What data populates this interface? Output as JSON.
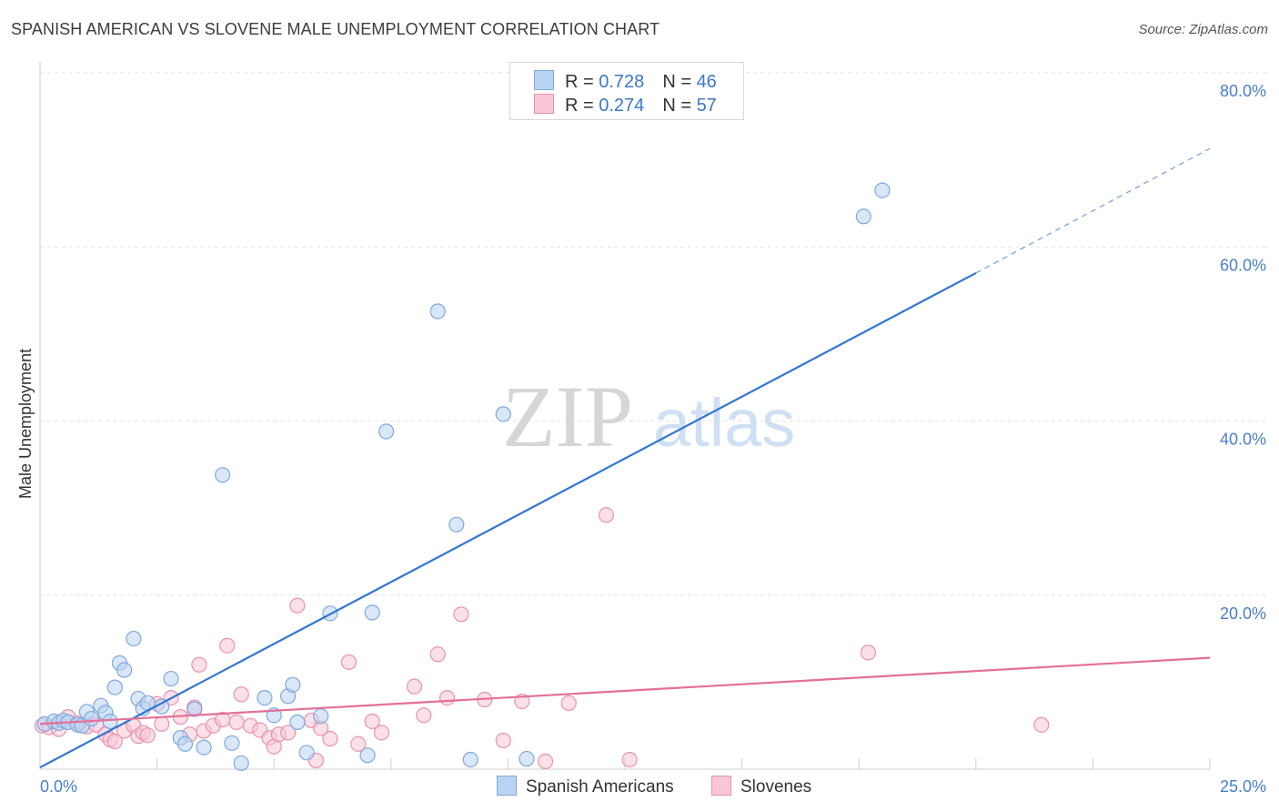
{
  "header": {
    "title": "SPANISH AMERICAN VS SLOVENE MALE UNEMPLOYMENT CORRELATION CHART",
    "source": "Source: ZipAtlas.com"
  },
  "legend": {
    "rows": [
      {
        "r_label": "R = ",
        "r_value": "0.728",
        "n_label": "N = ",
        "n_value": "46"
      },
      {
        "r_label": "R = ",
        "r_value": "0.274",
        "n_label": "N = ",
        "n_value": "57"
      }
    ]
  },
  "bottom_legend": {
    "series_a": "Spanish Americans",
    "series_b": "Slovenes"
  },
  "watermark": {
    "zip": "ZIP",
    "atlas": "atlas"
  },
  "colors": {
    "blue_fill": "#b9d3f3",
    "blue_stroke": "#7ea8e0",
    "blue_line": "#3276d2",
    "pink_fill": "#f8c6d6",
    "pink_stroke": "#e893ad",
    "pink_line": "#e46f99",
    "grid": "#e2e2e2",
    "tick_text": "#4a7fc8"
  },
  "chart_data": {
    "type": "scatter",
    "title": "SPANISH AMERICAN VS SLOVENE MALE UNEMPLOYMENT CORRELATION CHART",
    "xlabel": "",
    "ylabel": "Male Unemployment",
    "xlim": [
      0,
      25
    ],
    "ylim": [
      0,
      80
    ],
    "x_tick_labels": [
      "0.0%",
      "25.0%"
    ],
    "y_ticks": [
      20,
      40,
      60,
      80
    ],
    "y_tick_labels": [
      "20.0%",
      "40.0%",
      "60.0%",
      "80.0%"
    ],
    "grid": true,
    "legend_position": "top-center",
    "series": [
      {
        "name": "Spanish Americans",
        "r": 0.728,
        "n": 46,
        "trend": {
          "x0": 0,
          "y0": 0.2,
          "x1": 20,
          "y1": 57,
          "dash_to_x": 25,
          "dash_to_y": 71.3
        },
        "points": [
          [
            0.1,
            5.2
          ],
          [
            0.3,
            5.5
          ],
          [
            0.4,
            5.3
          ],
          [
            0.5,
            5.6
          ],
          [
            0.6,
            5.4
          ],
          [
            0.8,
            5.1
          ],
          [
            0.9,
            5.0
          ],
          [
            1.0,
            6.6
          ],
          [
            1.1,
            5.8
          ],
          [
            1.3,
            7.3
          ],
          [
            1.4,
            6.5
          ],
          [
            1.5,
            5.5
          ],
          [
            1.6,
            9.4
          ],
          [
            1.7,
            12.2
          ],
          [
            1.8,
            11.4
          ],
          [
            2.0,
            15.0
          ],
          [
            2.1,
            8.1
          ],
          [
            2.2,
            7.0
          ],
          [
            2.3,
            7.6
          ],
          [
            2.6,
            7.2
          ],
          [
            2.8,
            10.4
          ],
          [
            3.0,
            3.6
          ],
          [
            3.1,
            2.9
          ],
          [
            3.3,
            6.9
          ],
          [
            3.5,
            2.5
          ],
          [
            3.9,
            33.8
          ],
          [
            4.1,
            3.0
          ],
          [
            4.3,
            0.7
          ],
          [
            4.8,
            8.2
          ],
          [
            5.0,
            6.2
          ],
          [
            5.3,
            8.4
          ],
          [
            5.4,
            9.7
          ],
          [
            5.5,
            5.4
          ],
          [
            5.7,
            1.9
          ],
          [
            6.0,
            6.1
          ],
          [
            6.2,
            17.9
          ],
          [
            7.0,
            1.6
          ],
          [
            7.1,
            18.0
          ],
          [
            7.4,
            38.8
          ],
          [
            8.5,
            52.6
          ],
          [
            8.9,
            28.1
          ],
          [
            9.2,
            1.1
          ],
          [
            9.9,
            40.8
          ],
          [
            10.4,
            1.2
          ],
          [
            17.6,
            63.5
          ],
          [
            18.0,
            66.5
          ]
        ]
      },
      {
        "name": "Slovenes",
        "r": 0.274,
        "n": 57,
        "trend": {
          "x0": 0,
          "y0": 5.2,
          "x1": 25,
          "y1": 12.8
        },
        "points": [
          [
            0.05,
            5.0
          ],
          [
            0.2,
            4.8
          ],
          [
            0.4,
            4.6
          ],
          [
            0.6,
            6.0
          ],
          [
            0.8,
            5.3
          ],
          [
            1.0,
            4.9
          ],
          [
            1.2,
            5.1
          ],
          [
            1.4,
            4.0
          ],
          [
            1.5,
            3.4
          ],
          [
            1.6,
            3.2
          ],
          [
            1.8,
            4.4
          ],
          [
            2.0,
            5.0
          ],
          [
            2.1,
            3.8
          ],
          [
            2.2,
            4.2
          ],
          [
            2.3,
            3.9
          ],
          [
            2.5,
            7.5
          ],
          [
            2.6,
            5.2
          ],
          [
            2.8,
            8.2
          ],
          [
            3.0,
            6.0
          ],
          [
            3.2,
            4.0
          ],
          [
            3.3,
            7.1
          ],
          [
            3.4,
            12.0
          ],
          [
            3.5,
            4.4
          ],
          [
            3.7,
            5.0
          ],
          [
            3.9,
            5.7
          ],
          [
            4.0,
            14.2
          ],
          [
            4.2,
            5.4
          ],
          [
            4.3,
            8.6
          ],
          [
            4.5,
            5.0
          ],
          [
            4.7,
            4.5
          ],
          [
            4.9,
            3.6
          ],
          [
            5.0,
            2.6
          ],
          [
            5.1,
            4.0
          ],
          [
            5.3,
            4.2
          ],
          [
            5.5,
            18.8
          ],
          [
            5.8,
            5.6
          ],
          [
            5.9,
            1.0
          ],
          [
            6.0,
            4.7
          ],
          [
            6.2,
            3.5
          ],
          [
            6.6,
            12.3
          ],
          [
            6.8,
            2.9
          ],
          [
            7.1,
            5.5
          ],
          [
            7.3,
            4.2
          ],
          [
            8.0,
            9.5
          ],
          [
            8.2,
            6.2
          ],
          [
            8.5,
            13.2
          ],
          [
            8.7,
            8.2
          ],
          [
            9.0,
            17.8
          ],
          [
            9.5,
            8.0
          ],
          [
            9.9,
            3.3
          ],
          [
            10.3,
            7.8
          ],
          [
            10.8,
            0.9
          ],
          [
            11.3,
            7.6
          ],
          [
            12.1,
            29.2
          ],
          [
            12.6,
            1.1
          ],
          [
            17.7,
            13.4
          ],
          [
            21.4,
            5.1
          ]
        ]
      }
    ]
  }
}
